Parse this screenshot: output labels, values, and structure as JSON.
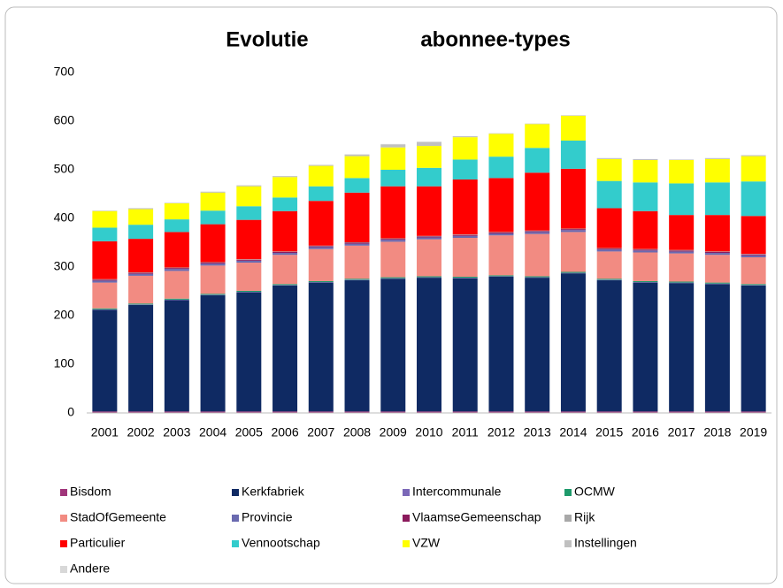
{
  "chart_data": {
    "type": "stacked-bar",
    "title": "Evolutie abonnee-types",
    "categories": [
      "2001",
      "2002",
      "2003",
      "2004",
      "2005",
      "2006",
      "2007",
      "2008",
      "2009",
      "2010",
      "2011",
      "2012",
      "2013",
      "2014",
      "2015",
      "2016",
      "2017",
      "2018",
      "2019"
    ],
    "ylim": [
      0,
      700
    ],
    "yticks": [
      0,
      100,
      200,
      300,
      400,
      500,
      600,
      700
    ],
    "grid": false,
    "legend": "bottom",
    "series": [
      {
        "name": "Bisdom",
        "color": "#a0357a",
        "values": [
          3,
          3,
          3,
          3,
          3,
          3,
          3,
          3,
          3,
          3,
          3,
          3,
          3,
          3,
          3,
          3,
          3,
          3,
          3
        ]
      },
      {
        "name": "Kerkfabriek",
        "color": "#0f2a63",
        "values": [
          209,
          219,
          229,
          239,
          245,
          259,
          265,
          270,
          273,
          275,
          274,
          277,
          275,
          284,
          270,
          265,
          264,
          262,
          259
        ]
      },
      {
        "name": "Intercommunale",
        "color": "#7b68b8",
        "values": [
          1,
          1,
          1,
          1,
          1,
          1,
          1,
          1,
          1,
          1,
          1,
          1,
          1,
          1,
          1,
          1,
          1,
          1,
          1
        ]
      },
      {
        "name": "OCMW",
        "color": "#1e9a6b",
        "values": [
          2,
          2,
          2,
          2,
          2,
          2,
          2,
          2,
          2,
          2,
          2,
          2,
          2,
          2,
          2,
          2,
          2,
          2,
          2
        ]
      },
      {
        "name": "StadOfGemeente",
        "color": "#f28b82",
        "values": [
          53,
          57,
          57,
          58,
          58,
          60,
          66,
          68,
          73,
          76,
          80,
          82,
          87,
          82,
          56,
          59,
          58,
          57,
          55
        ]
      },
      {
        "name": "Provincie",
        "color": "#6a6ab0",
        "values": [
          4,
          4,
          4,
          4,
          4,
          4,
          4,
          4,
          4,
          4,
          4,
          4,
          4,
          4,
          4,
          4,
          4,
          4,
          4
        ]
      },
      {
        "name": "VlaamseGemeenschap",
        "color": "#8b1a5c",
        "values": [
          2,
          2,
          2,
          2,
          2,
          2,
          2,
          2,
          2,
          2,
          2,
          2,
          2,
          2,
          2,
          2,
          2,
          2,
          2
        ]
      },
      {
        "name": "Rijk",
        "color": "#a8a8a8",
        "values": [
          1,
          1,
          1,
          1,
          1,
          1,
          1,
          1,
          1,
          1,
          1,
          1,
          1,
          1,
          1,
          1,
          1,
          1,
          1
        ]
      },
      {
        "name": "Particulier",
        "color": "#ff0000",
        "values": [
          78,
          69,
          73,
          78,
          81,
          83,
          92,
          102,
          107,
          102,
          113,
          111,
          119,
          123,
          82,
          78,
          72,
          75,
          78
        ]
      },
      {
        "name": "Vennootschap",
        "color": "#33cccc",
        "values": [
          28,
          29,
          26,
          28,
          28,
          28,
          30,
          30,
          34,
          38,
          41,
          44,
          51,
          58,
          56,
          59,
          65,
          67,
          71
        ]
      },
      {
        "name": "VZW",
        "color": "#ffff00",
        "values": [
          34,
          32,
          33,
          37,
          41,
          42,
          42,
          45,
          46,
          45,
          46,
          47,
          49,
          51,
          45,
          46,
          48,
          48,
          52
        ]
      },
      {
        "name": "Instellingen",
        "color": "#c0c0c0",
        "values": [
          1,
          2,
          1,
          2,
          2,
          2,
          2,
          3,
          6,
          8,
          2,
          1,
          1,
          1,
          2,
          2,
          1,
          2,
          2
        ]
      },
      {
        "name": "Andere",
        "color": "#d8d8d8",
        "values": [
          0,
          0,
          0,
          0,
          0,
          0,
          0,
          1,
          1,
          1,
          0,
          0,
          0,
          0,
          0,
          0,
          0,
          0,
          0
        ]
      }
    ]
  }
}
